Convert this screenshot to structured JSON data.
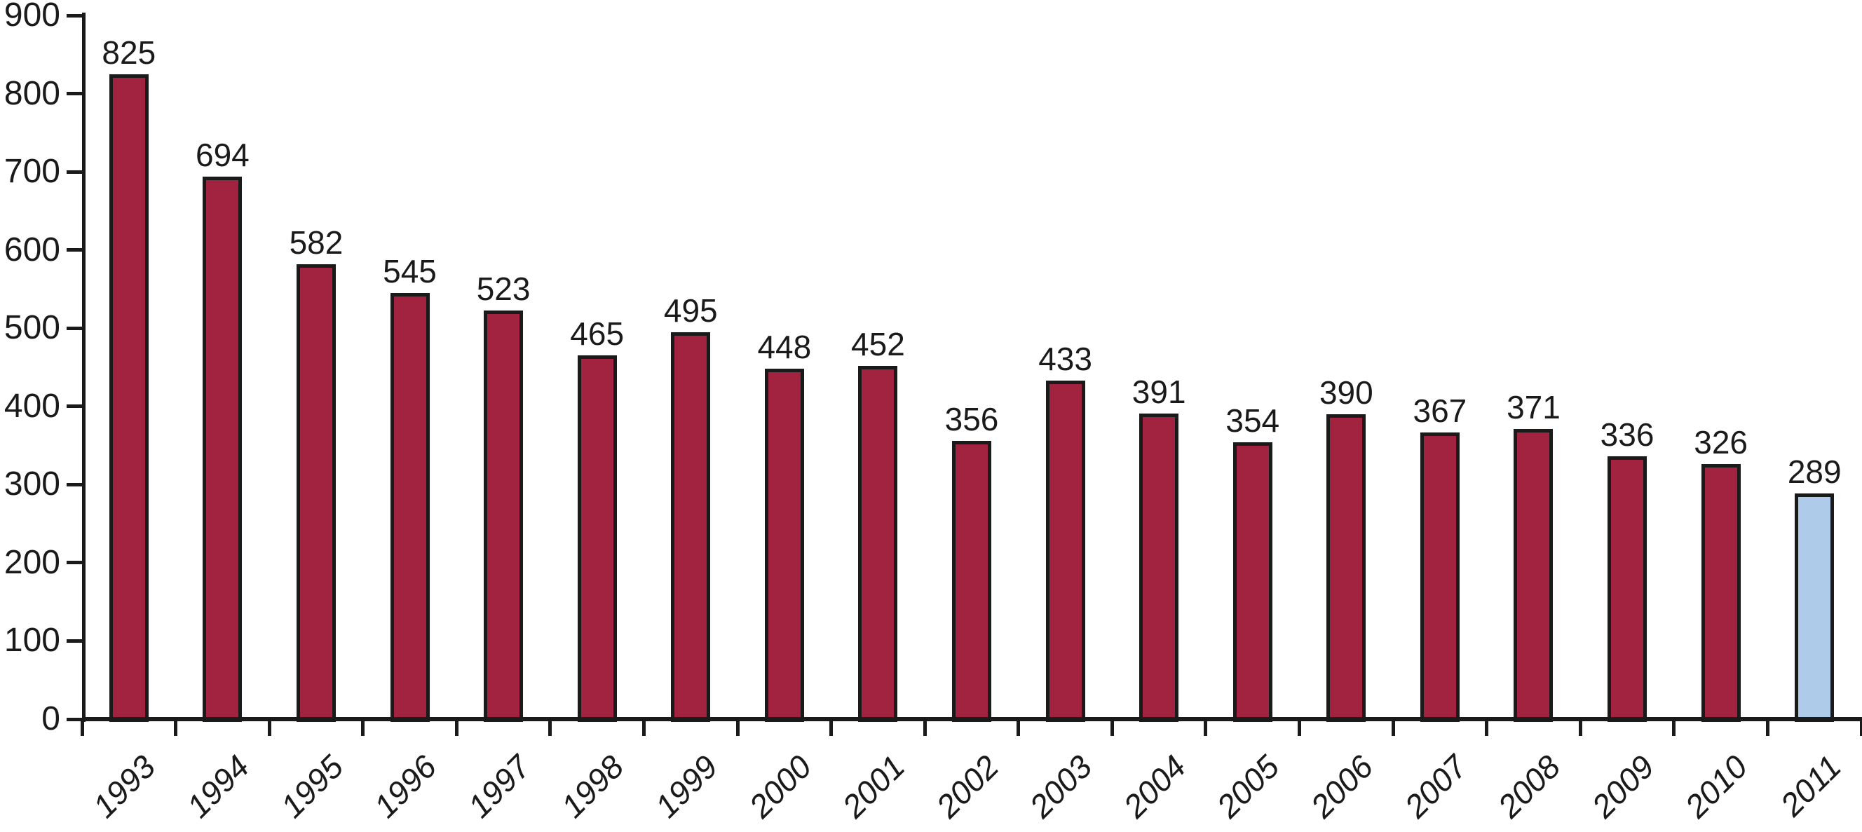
{
  "chart_data": {
    "type": "bar",
    "title": "",
    "xlabel": "",
    "ylabel": "",
    "categories": [
      "1993",
      "1994",
      "1995",
      "1996",
      "1997",
      "1998",
      "1999",
      "2000",
      "2001",
      "2002",
      "2003",
      "2004",
      "2005",
      "2006",
      "2007",
      "2008",
      "2009",
      "2010",
      "2011"
    ],
    "values": [
      825,
      694,
      582,
      545,
      523,
      465,
      495,
      448,
      452,
      356,
      433,
      391,
      354,
      390,
      367,
      371,
      336,
      326,
      289
    ],
    "value_labels": [
      "825",
      "694",
      "582",
      "545",
      "523",
      "465",
      "495",
      "448",
      "452",
      "356",
      "433",
      "391",
      "354",
      "390",
      "367",
      "371",
      "336",
      "326",
      "289"
    ],
    "ylim": [
      0,
      900
    ],
    "ytick_step": 100,
    "ytick_labels": [
      "0",
      "100",
      "200",
      "300",
      "400",
      "500",
      "600",
      "700",
      "800",
      "900"
    ],
    "grid": false,
    "legend": "none",
    "x_label_rotation_deg": -45,
    "x_label_style": "italic",
    "colors": {
      "bar_fill_default": "#A12340",
      "bar_fill_highlight": "#AECBEA",
      "bar_outline": "#1A1A1A",
      "axis": "#1A1A1A",
      "text": "#1A1A1A",
      "background": "#FFFFFF"
    },
    "highlight_index": 18
  }
}
